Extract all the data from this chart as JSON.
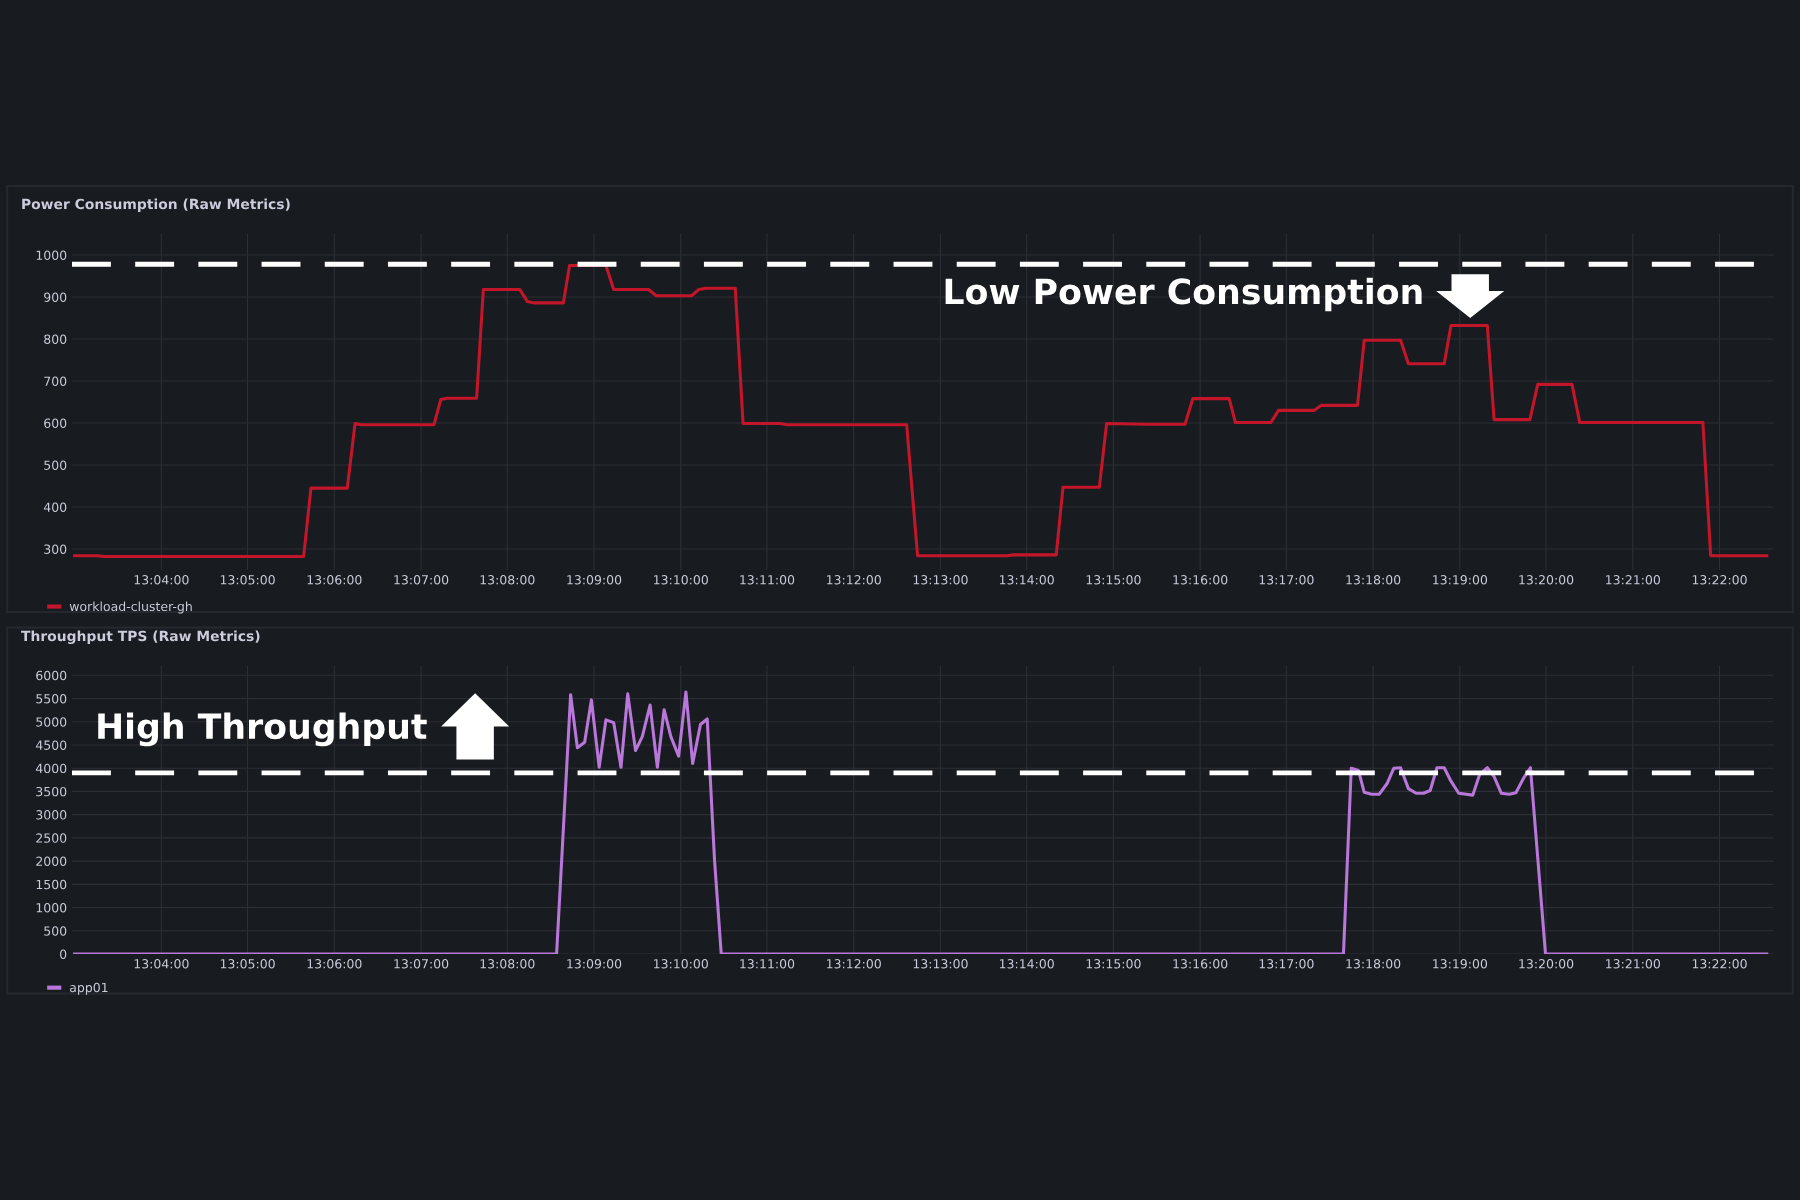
{
  "chart_data": [
    {
      "type": "line",
      "title": "Power Consumption (Raw Metrics)",
      "x": [
        13.05,
        13.0543,
        13.0557,
        13.0941,
        13.0955,
        13.1025,
        13.104,
        13.1052,
        13.1192,
        13.1205,
        13.1217,
        13.1274,
        13.1287,
        13.1357,
        13.1372,
        13.1385,
        13.1441,
        13.1453,
        13.1523,
        13.1538,
        13.1605,
        13.162,
        13.1688,
        13.1702,
        13.1715,
        13.1772,
        13.1787,
        13.1858,
        13.1872,
        13.2102,
        13.2123,
        13.2295,
        13.2307,
        13.239,
        13.2403,
        13.2473,
        13.2487,
        13.2565,
        13.2638,
        13.2653,
        13.2723,
        13.2735,
        13.2803,
        13.2818,
        13.2887,
        13.29,
        13.297,
        13.2983,
        13.3053,
        13.3068,
        13.3137,
        13.315,
        13.322,
        13.3233,
        13.3302,
        13.3317,
        13.3383,
        13.3398,
        13.3635,
        13.365,
        13.3758
      ],
      "series": [
        {
          "name": "workload-cluster-gh",
          "color": "#c4162a",
          "values": [
            284,
            284,
            282,
            282,
            445,
            445,
            599,
            596,
            596,
            656,
            659,
            659,
            918,
            918,
            889,
            886,
            886,
            975,
            975,
            918,
            918,
            903,
            903,
            918,
            921,
            921,
            599,
            599,
            596,
            596,
            284,
            284,
            286,
            286,
            447,
            447,
            599,
            597,
            597,
            658,
            658,
            601,
            601,
            630,
            630,
            642,
            642,
            797,
            797,
            741,
            741,
            832,
            832,
            608,
            608,
            692,
            692,
            601,
            601,
            284,
            284
          ]
        }
      ],
      "xlim": [
        13.0495,
        13.377
      ],
      "ylim": [
        250,
        1050
      ],
      "xticks": [
        {
          "value": 13.0667,
          "label": "13:04:00"
        },
        {
          "value": 13.0833,
          "label": "13:05:00"
        },
        {
          "value": 13.1,
          "label": "13:06:00"
        },
        {
          "value": 13.1167,
          "label": "13:07:00"
        },
        {
          "value": 13.1333,
          "label": "13:08:00"
        },
        {
          "value": 13.15,
          "label": "13:09:00"
        },
        {
          "value": 13.1667,
          "label": "13:10:00"
        },
        {
          "value": 13.1833,
          "label": "13:11:00"
        },
        {
          "value": 13.2,
          "label": "13:12:00"
        },
        {
          "value": 13.2167,
          "label": "13:13:00"
        },
        {
          "value": 13.2333,
          "label": "13:14:00"
        },
        {
          "value": 13.25,
          "label": "13:15:00"
        },
        {
          "value": 13.2667,
          "label": "13:16:00"
        },
        {
          "value": 13.2833,
          "label": "13:17:00"
        },
        {
          "value": 13.3,
          "label": "13:18:00"
        },
        {
          "value": 13.3167,
          "label": "13:19:00"
        },
        {
          "value": 13.3333,
          "label": "13:20:00"
        },
        {
          "value": 13.35,
          "label": "13:21:00"
        },
        {
          "value": 13.3667,
          "label": "13:22:00"
        }
      ],
      "yticks": [
        300,
        400,
        500,
        600,
        700,
        800,
        900,
        1000
      ],
      "grid": true,
      "legend": "bottom left",
      "ref_lines": [
        {
          "axis": "y",
          "value": 978,
          "color": "#ffffff",
          "line_style": "dashed"
        }
      ],
      "annotations": [
        "Low Power Consumption"
      ]
    },
    {
      "type": "line",
      "title": "Throughput TPS (Raw Metrics)",
      "x": [
        13.05,
        13.1428,
        13.1455,
        13.1468,
        13.1482,
        13.1495,
        13.151,
        13.1523,
        13.1538,
        13.1552,
        13.1565,
        13.158,
        13.1593,
        13.1608,
        13.1622,
        13.1635,
        13.1648,
        13.1663,
        13.1677,
        13.169,
        13.1705,
        13.1718,
        13.1732,
        13.1745,
        13.2943,
        13.2958,
        13.2972,
        13.2983,
        13.2997,
        13.3012,
        13.3027,
        13.304,
        13.3053,
        13.3068,
        13.3083,
        13.3097,
        13.311,
        13.3123,
        13.3137,
        13.315,
        13.3165,
        13.3192,
        13.3205,
        13.322,
        13.3233,
        13.3247,
        13.3262,
        13.3275,
        13.329,
        13.3303,
        13.3332,
        13.3758
      ],
      "series": [
        {
          "name": "app01",
          "color": "#b877d9",
          "values": [
            0,
            0,
            5580,
            4440,
            4560,
            5470,
            4020,
            5040,
            4980,
            4020,
            5600,
            4380,
            4680,
            5360,
            4020,
            5260,
            4680,
            4260,
            5640,
            4100,
            4940,
            5060,
            2040,
            0,
            0,
            4000,
            3950,
            3480,
            3440,
            3440,
            3670,
            4000,
            4010,
            3560,
            3460,
            3460,
            3520,
            4010,
            4010,
            3720,
            3460,
            3420,
            3860,
            4010,
            3820,
            3460,
            3440,
            3470,
            3790,
            4010,
            0,
            0
          ]
        }
      ],
      "xlim": [
        13.0495,
        13.377
      ],
      "ylim": [
        0,
        6200
      ],
      "xticks": [
        {
          "value": 13.0667,
          "label": "13:04:00"
        },
        {
          "value": 13.0833,
          "label": "13:05:00"
        },
        {
          "value": 13.1,
          "label": "13:06:00"
        },
        {
          "value": 13.1167,
          "label": "13:07:00"
        },
        {
          "value": 13.1333,
          "label": "13:08:00"
        },
        {
          "value": 13.15,
          "label": "13:09:00"
        },
        {
          "value": 13.1667,
          "label": "13:10:00"
        },
        {
          "value": 13.1833,
          "label": "13:11:00"
        },
        {
          "value": 13.2,
          "label": "13:12:00"
        },
        {
          "value": 13.2167,
          "label": "13:13:00"
        },
        {
          "value": 13.2333,
          "label": "13:14:00"
        },
        {
          "value": 13.25,
          "label": "13:15:00"
        },
        {
          "value": 13.2667,
          "label": "13:16:00"
        },
        {
          "value": 13.2833,
          "label": "13:17:00"
        },
        {
          "value": 13.3,
          "label": "13:18:00"
        },
        {
          "value": 13.3167,
          "label": "13:19:00"
        },
        {
          "value": 13.3333,
          "label": "13:20:00"
        },
        {
          "value": 13.35,
          "label": "13:21:00"
        },
        {
          "value": 13.3667,
          "label": "13:22:00"
        }
      ],
      "yticks": [
        0,
        500,
        1000,
        1500,
        2000,
        2500,
        3000,
        3500,
        4000,
        4500,
        5000,
        5500,
        6000
      ],
      "grid": true,
      "legend": "bottom left",
      "ref_lines": [
        {
          "axis": "y",
          "value": 3900,
          "color": "#ffffff",
          "line_style": "dashed"
        }
      ],
      "annotations": [
        "High Throughput"
      ]
    }
  ]
}
